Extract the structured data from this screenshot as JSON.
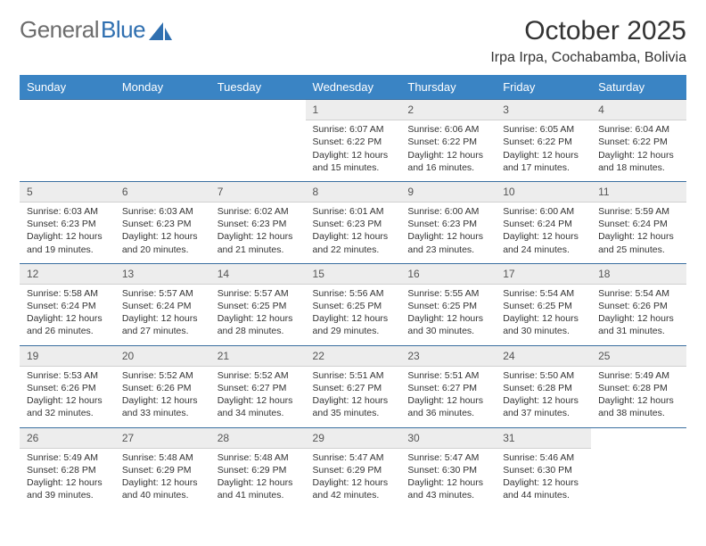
{
  "brand": {
    "part1": "General",
    "part2": "Blue"
  },
  "title": "October 2025",
  "location": "Irpa Irpa, Cochabamba, Bolivia",
  "colors": {
    "header_bg": "#3a84c4",
    "header_text": "#ffffff",
    "daynum_bg": "#ededed",
    "border_top": "#3a6fa0",
    "logo_gray": "#6d6d6d",
    "logo_blue": "#2f6fb0",
    "text": "#333333",
    "background": "#ffffff"
  },
  "day_headers": [
    "Sunday",
    "Monday",
    "Tuesday",
    "Wednesday",
    "Thursday",
    "Friday",
    "Saturday"
  ],
  "weeks": [
    [
      null,
      null,
      null,
      {
        "n": "1",
        "sr": "Sunrise: 6:07 AM",
        "ss": "Sunset: 6:22 PM",
        "d1": "Daylight: 12 hours",
        "d2": "and 15 minutes."
      },
      {
        "n": "2",
        "sr": "Sunrise: 6:06 AM",
        "ss": "Sunset: 6:22 PM",
        "d1": "Daylight: 12 hours",
        "d2": "and 16 minutes."
      },
      {
        "n": "3",
        "sr": "Sunrise: 6:05 AM",
        "ss": "Sunset: 6:22 PM",
        "d1": "Daylight: 12 hours",
        "d2": "and 17 minutes."
      },
      {
        "n": "4",
        "sr": "Sunrise: 6:04 AM",
        "ss": "Sunset: 6:22 PM",
        "d1": "Daylight: 12 hours",
        "d2": "and 18 minutes."
      }
    ],
    [
      {
        "n": "5",
        "sr": "Sunrise: 6:03 AM",
        "ss": "Sunset: 6:23 PM",
        "d1": "Daylight: 12 hours",
        "d2": "and 19 minutes."
      },
      {
        "n": "6",
        "sr": "Sunrise: 6:03 AM",
        "ss": "Sunset: 6:23 PM",
        "d1": "Daylight: 12 hours",
        "d2": "and 20 minutes."
      },
      {
        "n": "7",
        "sr": "Sunrise: 6:02 AM",
        "ss": "Sunset: 6:23 PM",
        "d1": "Daylight: 12 hours",
        "d2": "and 21 minutes."
      },
      {
        "n": "8",
        "sr": "Sunrise: 6:01 AM",
        "ss": "Sunset: 6:23 PM",
        "d1": "Daylight: 12 hours",
        "d2": "and 22 minutes."
      },
      {
        "n": "9",
        "sr": "Sunrise: 6:00 AM",
        "ss": "Sunset: 6:23 PM",
        "d1": "Daylight: 12 hours",
        "d2": "and 23 minutes."
      },
      {
        "n": "10",
        "sr": "Sunrise: 6:00 AM",
        "ss": "Sunset: 6:24 PM",
        "d1": "Daylight: 12 hours",
        "d2": "and 24 minutes."
      },
      {
        "n": "11",
        "sr": "Sunrise: 5:59 AM",
        "ss": "Sunset: 6:24 PM",
        "d1": "Daylight: 12 hours",
        "d2": "and 25 minutes."
      }
    ],
    [
      {
        "n": "12",
        "sr": "Sunrise: 5:58 AM",
        "ss": "Sunset: 6:24 PM",
        "d1": "Daylight: 12 hours",
        "d2": "and 26 minutes."
      },
      {
        "n": "13",
        "sr": "Sunrise: 5:57 AM",
        "ss": "Sunset: 6:24 PM",
        "d1": "Daylight: 12 hours",
        "d2": "and 27 minutes."
      },
      {
        "n": "14",
        "sr": "Sunrise: 5:57 AM",
        "ss": "Sunset: 6:25 PM",
        "d1": "Daylight: 12 hours",
        "d2": "and 28 minutes."
      },
      {
        "n": "15",
        "sr": "Sunrise: 5:56 AM",
        "ss": "Sunset: 6:25 PM",
        "d1": "Daylight: 12 hours",
        "d2": "and 29 minutes."
      },
      {
        "n": "16",
        "sr": "Sunrise: 5:55 AM",
        "ss": "Sunset: 6:25 PM",
        "d1": "Daylight: 12 hours",
        "d2": "and 30 minutes."
      },
      {
        "n": "17",
        "sr": "Sunrise: 5:54 AM",
        "ss": "Sunset: 6:25 PM",
        "d1": "Daylight: 12 hours",
        "d2": "and 30 minutes."
      },
      {
        "n": "18",
        "sr": "Sunrise: 5:54 AM",
        "ss": "Sunset: 6:26 PM",
        "d1": "Daylight: 12 hours",
        "d2": "and 31 minutes."
      }
    ],
    [
      {
        "n": "19",
        "sr": "Sunrise: 5:53 AM",
        "ss": "Sunset: 6:26 PM",
        "d1": "Daylight: 12 hours",
        "d2": "and 32 minutes."
      },
      {
        "n": "20",
        "sr": "Sunrise: 5:52 AM",
        "ss": "Sunset: 6:26 PM",
        "d1": "Daylight: 12 hours",
        "d2": "and 33 minutes."
      },
      {
        "n": "21",
        "sr": "Sunrise: 5:52 AM",
        "ss": "Sunset: 6:27 PM",
        "d1": "Daylight: 12 hours",
        "d2": "and 34 minutes."
      },
      {
        "n": "22",
        "sr": "Sunrise: 5:51 AM",
        "ss": "Sunset: 6:27 PM",
        "d1": "Daylight: 12 hours",
        "d2": "and 35 minutes."
      },
      {
        "n": "23",
        "sr": "Sunrise: 5:51 AM",
        "ss": "Sunset: 6:27 PM",
        "d1": "Daylight: 12 hours",
        "d2": "and 36 minutes."
      },
      {
        "n": "24",
        "sr": "Sunrise: 5:50 AM",
        "ss": "Sunset: 6:28 PM",
        "d1": "Daylight: 12 hours",
        "d2": "and 37 minutes."
      },
      {
        "n": "25",
        "sr": "Sunrise: 5:49 AM",
        "ss": "Sunset: 6:28 PM",
        "d1": "Daylight: 12 hours",
        "d2": "and 38 minutes."
      }
    ],
    [
      {
        "n": "26",
        "sr": "Sunrise: 5:49 AM",
        "ss": "Sunset: 6:28 PM",
        "d1": "Daylight: 12 hours",
        "d2": "and 39 minutes."
      },
      {
        "n": "27",
        "sr": "Sunrise: 5:48 AM",
        "ss": "Sunset: 6:29 PM",
        "d1": "Daylight: 12 hours",
        "d2": "and 40 minutes."
      },
      {
        "n": "28",
        "sr": "Sunrise: 5:48 AM",
        "ss": "Sunset: 6:29 PM",
        "d1": "Daylight: 12 hours",
        "d2": "and 41 minutes."
      },
      {
        "n": "29",
        "sr": "Sunrise: 5:47 AM",
        "ss": "Sunset: 6:29 PM",
        "d1": "Daylight: 12 hours",
        "d2": "and 42 minutes."
      },
      {
        "n": "30",
        "sr": "Sunrise: 5:47 AM",
        "ss": "Sunset: 6:30 PM",
        "d1": "Daylight: 12 hours",
        "d2": "and 43 minutes."
      },
      {
        "n": "31",
        "sr": "Sunrise: 5:46 AM",
        "ss": "Sunset: 6:30 PM",
        "d1": "Daylight: 12 hours",
        "d2": "and 44 minutes."
      },
      null
    ]
  ]
}
